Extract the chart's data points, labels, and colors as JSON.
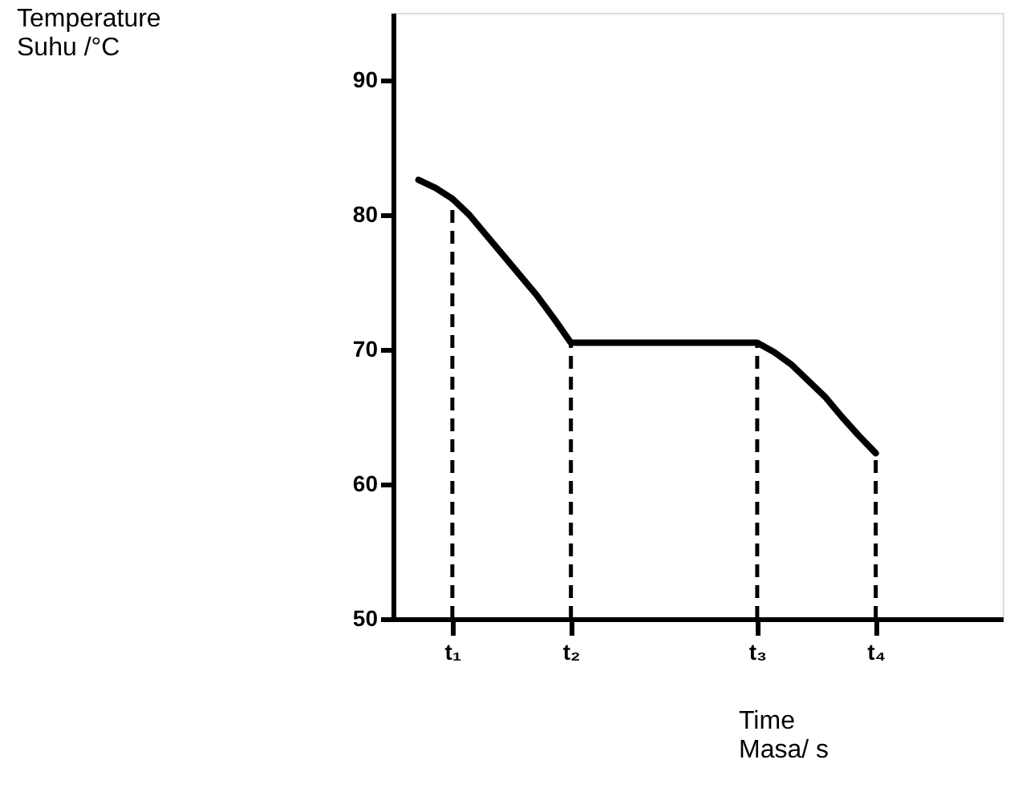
{
  "chart_data": {
    "type": "line",
    "ylabel": [
      "Temperature",
      "Suhu /°C"
    ],
    "xlabel": [
      "Time",
      "Masa/ s"
    ],
    "categories": [
      null,
      null,
      null,
      "t₁",
      null,
      null,
      null,
      null,
      null,
      null,
      "t₂",
      null,
      null,
      null,
      null,
      null,
      null,
      null,
      null,
      null,
      null,
      "t₃",
      null,
      null,
      null,
      null,
      null,
      null,
      "t₄",
      null,
      null,
      null,
      null,
      null,
      null,
      null
    ],
    "series": [
      {
        "color": "#000000",
        "values": [
          null,
          82.6,
          82.0,
          81.2,
          80.0,
          78.5,
          77.0,
          75.5,
          74.0,
          72.3,
          70.5,
          70.5,
          70.5,
          70.5,
          70.5,
          70.5,
          70.5,
          70.5,
          70.5,
          70.5,
          70.5,
          70.5,
          69.8,
          68.9,
          67.7,
          66.5,
          65.0,
          63.6,
          62.3,
          null,
          null,
          null,
          null,
          null,
          null,
          null
        ]
      }
    ],
    "ylim": [
      50,
      95
    ],
    "yticks": [
      50,
      60,
      70,
      80,
      90
    ],
    "ref_lines": [
      {
        "axis": "x",
        "value": "t₁",
        "line_style": "dashed"
      },
      {
        "axis": "x",
        "value": "t₂",
        "line_style": "dashed"
      },
      {
        "axis": "x",
        "value": "t₃",
        "line_style": "dashed"
      },
      {
        "axis": "x",
        "value": "t₄",
        "line_style": "dashed"
      }
    ],
    "grid": false,
    "marker": "none",
    "line_style": "solid"
  }
}
